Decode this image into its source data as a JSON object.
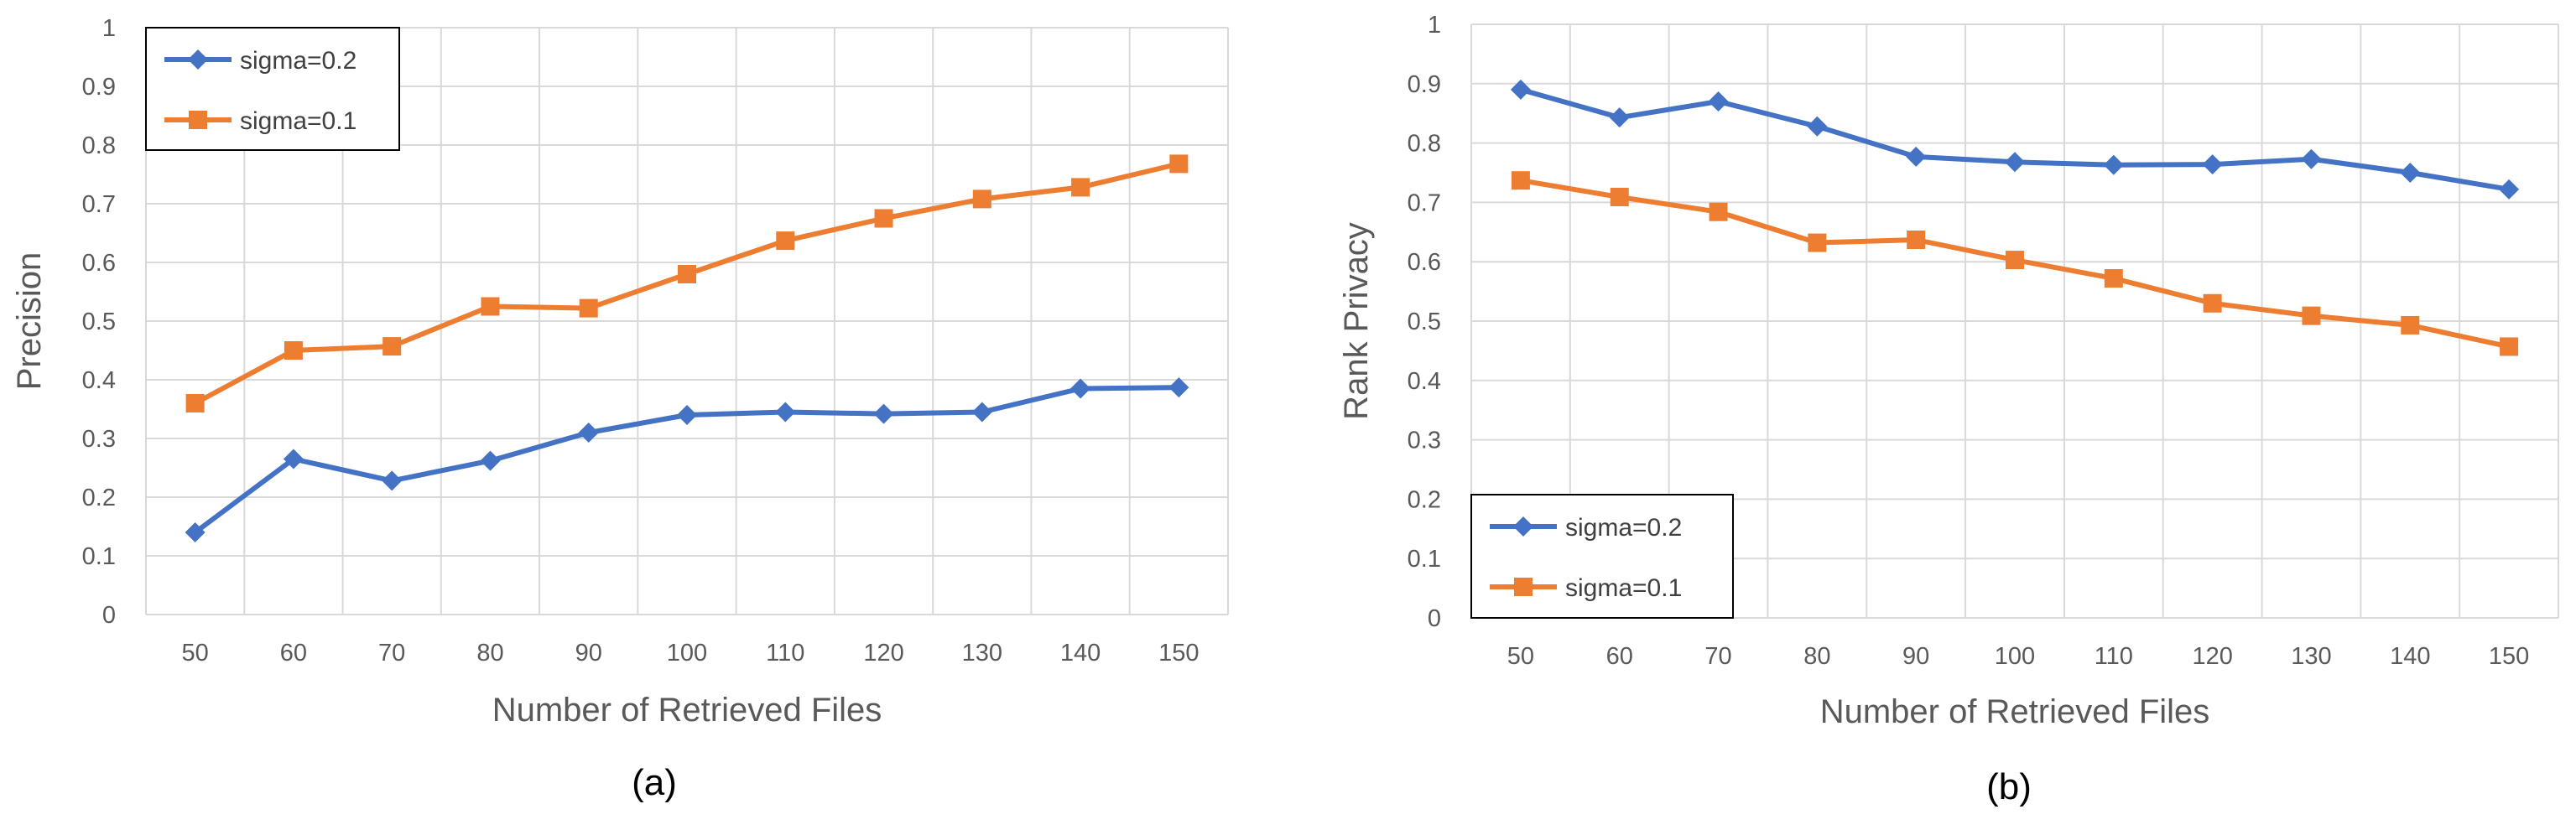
{
  "chart_data": [
    {
      "type": "line",
      "caption": "(a)",
      "xlabel": "Number of Retrieved Files",
      "ylabel": "Precision",
      "categories": [
        50,
        60,
        70,
        80,
        90,
        100,
        110,
        120,
        130,
        140,
        150
      ],
      "ylim": [
        0,
        1
      ],
      "yticks": [
        "0",
        "0.1",
        "0.2",
        "0.3",
        "0.4",
        "0.5",
        "0.6",
        "0.7",
        "0.8",
        "0.9",
        "1"
      ],
      "grid": true,
      "legend_position": "top-left",
      "series": [
        {
          "name": "sigma=0.2",
          "marker": "diamond",
          "color": "#4472C4",
          "values": [
            0.14,
            0.265,
            0.228,
            0.262,
            0.31,
            0.34,
            0.345,
            0.342,
            0.345,
            0.385,
            0.387
          ]
        },
        {
          "name": "sigma=0.1",
          "marker": "square",
          "color": "#ED7D31",
          "values": [
            0.36,
            0.45,
            0.457,
            0.525,
            0.522,
            0.58,
            0.637,
            0.675,
            0.708,
            0.728,
            0.768
          ]
        }
      ]
    },
    {
      "type": "line",
      "caption": "(b)",
      "xlabel": "Number of Retrieved Files",
      "ylabel": "Rank Privacy",
      "categories": [
        50,
        60,
        70,
        80,
        90,
        100,
        110,
        120,
        130,
        140,
        150
      ],
      "ylim": [
        0,
        1
      ],
      "yticks": [
        "0",
        "0.1",
        "0.2",
        "0.3",
        "0.4",
        "0.5",
        "0.6",
        "0.7",
        "0.8",
        "0.9",
        "1"
      ],
      "grid": true,
      "legend_position": "bottom-left",
      "series": [
        {
          "name": "sigma=0.2",
          "marker": "diamond",
          "color": "#4472C4",
          "values": [
            0.89,
            0.843,
            0.87,
            0.828,
            0.777,
            0.768,
            0.763,
            0.764,
            0.773,
            0.75,
            0.722
          ]
        },
        {
          "name": "sigma=0.1",
          "marker": "square",
          "color": "#ED7D31",
          "values": [
            0.737,
            0.709,
            0.684,
            0.632,
            0.637,
            0.603,
            0.572,
            0.53,
            0.509,
            0.493,
            0.457
          ]
        }
      ]
    }
  ]
}
